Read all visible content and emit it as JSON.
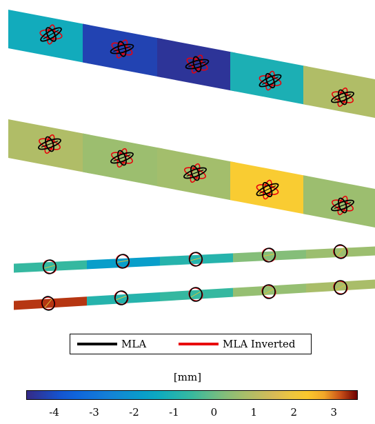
{
  "legend": {
    "items": [
      {
        "label": "MLA",
        "color": "#000000"
      },
      {
        "label": "MLA Inverted",
        "color": "#e8000b"
      }
    ]
  },
  "colorbar": {
    "unit_label": "[mm]",
    "range": [
      -4.7,
      3.6
    ],
    "ticks": [
      -4,
      -3,
      -2,
      -1,
      0,
      1,
      2,
      3
    ],
    "tick_labels": [
      "-4",
      "-3",
      "-2",
      "-1",
      "0",
      "1",
      "2",
      "3"
    ],
    "colormap": "parula-like (dark blue → cyan → green → yellow → orange → dark red)"
  },
  "panels": [
    {
      "id": "top-band",
      "segment_values": [
        -1.3,
        -4.2,
        -4.5,
        -1.1,
        0.9
      ],
      "glyph_style": "ellipse-cross"
    },
    {
      "id": "middle-band",
      "segment_values": [
        0.9,
        0.6,
        0.7,
        2.2,
        0.6
      ],
      "glyph_style": "ellipse-cross"
    },
    {
      "id": "thin-band-upper",
      "segment_values": [
        -0.6,
        -1.8,
        -0.9,
        0.3,
        0.6
      ],
      "glyph_style": "circle"
    },
    {
      "id": "thin-band-lower",
      "segment_values": [
        3.3,
        -0.9,
        -0.6,
        0.5,
        0.8
      ],
      "glyph_style": "circle"
    }
  ]
}
